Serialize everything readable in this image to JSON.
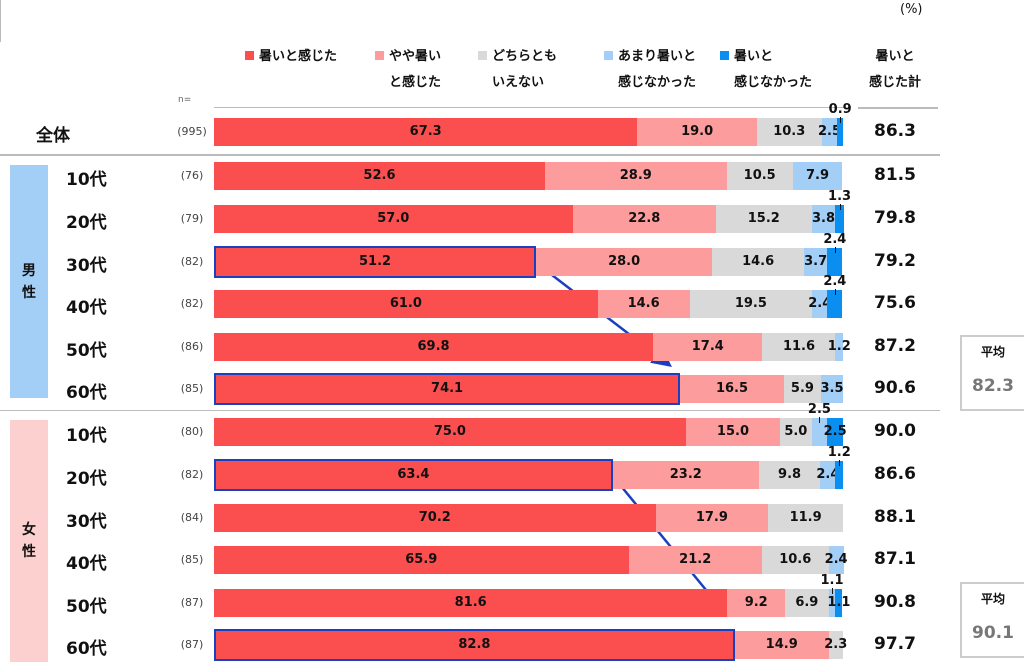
{
  "chart_data": {
    "type": "bar",
    "orientation": "horizontal",
    "stacked": true,
    "unit": "(%)",
    "n_label": "n=",
    "series": [
      {
        "name": "暑いと感じた",
        "color": "#fb4f4f"
      },
      {
        "name": "やや暑いと感じた",
        "color": "#fc9c9c"
      },
      {
        "name": "どちらともいえない",
        "color": "#d9d9d9"
      },
      {
        "name": "あまり暑いと感じなかった",
        "color": "#a3cff7"
      },
      {
        "name": "暑いと感じなかった",
        "color": "#0a8ef0"
      }
    ],
    "legend_lines": [
      [
        "暑いと感じた"
      ],
      [
        "やや暑い",
        "と感じた"
      ],
      [
        "どちらとも",
        "いえない"
      ],
      [
        "あまり暑いと",
        "感じなかった"
      ],
      [
        "暑いと",
        "感じなかった"
      ]
    ],
    "total_header": [
      "暑いと",
      "感じた計"
    ],
    "groups": [
      {
        "label": [
          "男",
          "性"
        ],
        "color": "#a3cff7"
      },
      {
        "label": [
          "女",
          "性"
        ],
        "color": "#fdd0d0"
      }
    ],
    "rows": [
      {
        "label": "全体",
        "n": "(995)",
        "values": [
          67.3,
          19.0,
          10.3,
          2.5,
          0.9
        ],
        "total": "86.3"
      },
      {
        "label": "10代",
        "n": "(76)",
        "values": [
          52.6,
          28.9,
          10.5,
          7.9,
          0
        ],
        "total": "81.5",
        "group": 0
      },
      {
        "label": "20代",
        "n": "(79)",
        "values": [
          57.0,
          22.8,
          15.2,
          3.8,
          1.3
        ],
        "total": "79.8",
        "group": 0
      },
      {
        "label": "30代",
        "n": "(82)",
        "values": [
          51.2,
          28.0,
          14.6,
          3.7,
          2.4
        ],
        "total": "79.2",
        "group": 0,
        "highlight": true
      },
      {
        "label": "40代",
        "n": "(82)",
        "values": [
          61.0,
          14.6,
          19.5,
          2.4,
          2.4
        ],
        "total": "75.6",
        "group": 0
      },
      {
        "label": "50代",
        "n": "(86)",
        "values": [
          69.8,
          17.4,
          11.6,
          1.2,
          0
        ],
        "total": "87.2",
        "group": 0
      },
      {
        "label": "60代",
        "n": "(85)",
        "values": [
          74.1,
          16.5,
          5.9,
          3.5,
          0
        ],
        "total": "90.6",
        "group": 0,
        "highlight": true
      },
      {
        "label": "10代",
        "n": "(80)",
        "values": [
          75.0,
          15.0,
          5.0,
          2.5,
          2.5
        ],
        "total": "90.0",
        "group": 1
      },
      {
        "label": "20代",
        "n": "(82)",
        "values": [
          63.4,
          23.2,
          9.8,
          2.4,
          1.2
        ],
        "total": "86.6",
        "group": 1,
        "highlight": true
      },
      {
        "label": "30代",
        "n": "(84)",
        "values": [
          70.2,
          17.9,
          11.9,
          0,
          0
        ],
        "total": "88.1",
        "group": 1
      },
      {
        "label": "40代",
        "n": "(85)",
        "values": [
          65.9,
          21.2,
          10.6,
          2.4,
          0
        ],
        "total": "87.1",
        "group": 1
      },
      {
        "label": "50代",
        "n": "(87)",
        "values": [
          81.6,
          9.2,
          6.9,
          1.1,
          1.1
        ],
        "total": "90.8",
        "group": 1
      },
      {
        "label": "60代",
        "n": "(87)",
        "values": [
          82.8,
          14.9,
          2.3,
          0,
          0
        ],
        "total": "97.7",
        "group": 1,
        "highlight": true
      }
    ],
    "averages": [
      {
        "label": "平均",
        "value": "82.3"
      },
      {
        "label": "平均",
        "value": "90.1"
      }
    ],
    "xlim": [
      0,
      100
    ]
  }
}
